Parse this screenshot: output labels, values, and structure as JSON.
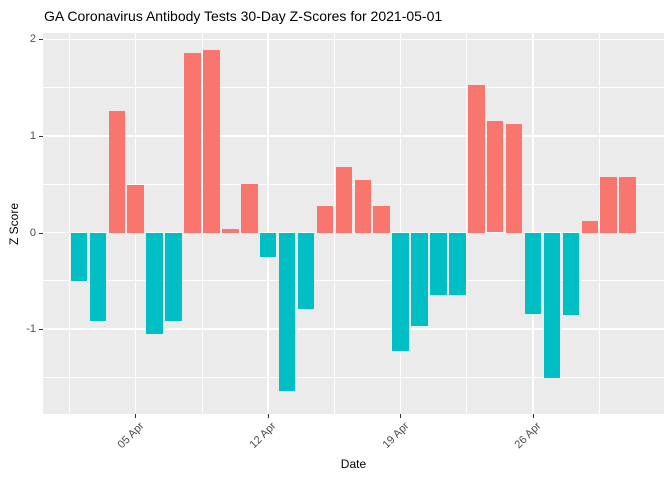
{
  "title": "GA Coronavirus Antibody Tests 30-Day Z-Scores for 2021-05-01",
  "chart_data": {
    "type": "bar",
    "title": "GA Coronavirus Antibody Tests 30-Day Z-Scores for 2021-05-01",
    "xlabel": "Date",
    "ylabel": "Z Score",
    "legend_position": "none",
    "grid": true,
    "panel_bg": "#EBEBEB",
    "grid_color": "#FFFFFF",
    "axis_text_color": "#4D4D4D",
    "tick_color": "#333333",
    "bar_colors": {
      "positive": "#F8766D",
      "negative": "#00BFC4"
    },
    "ylim": [
      -1.88,
      2.07
    ],
    "y_major_ticks": [
      2,
      1,
      0,
      -1
    ],
    "y_tick_labels": [
      "2",
      "1",
      "0",
      "-1"
    ],
    "y_minor_ticks": [
      1.5,
      0.5,
      -0.5,
      -1.5
    ],
    "x_major_ticks": [
      {
        "day": 3,
        "label": "05 Apr"
      },
      {
        "day": 10,
        "label": "12 Apr"
      },
      {
        "day": 17,
        "label": "19 Apr"
      },
      {
        "day": 24,
        "label": "26 Apr"
      }
    ],
    "x_minor_days": [
      -0.5,
      6.5,
      13.5,
      20.5,
      27.5
    ],
    "dates": [
      "2021-04-02",
      "2021-04-03",
      "2021-04-04",
      "2021-04-05",
      "2021-04-06",
      "2021-04-07",
      "2021-04-08",
      "2021-04-09",
      "2021-04-10",
      "2021-04-11",
      "2021-04-12",
      "2021-04-13",
      "2021-04-14",
      "2021-04-15",
      "2021-04-16",
      "2021-04-17",
      "2021-04-18",
      "2021-04-19",
      "2021-04-20",
      "2021-04-21",
      "2021-04-22",
      "2021-04-23",
      "2021-04-24",
      "2021-04-25",
      "2021-04-26",
      "2021-04-27",
      "2021-04-28",
      "2021-04-29",
      "2021-04-30",
      "2021-05-01"
    ],
    "values": [
      -0.5,
      -0.92,
      1.26,
      0.49,
      -1.05,
      -0.92,
      1.86,
      1.89,
      0.04,
      0.5,
      -0.25,
      -1.64,
      -0.79,
      0.27,
      0.68,
      0.54,
      0.27,
      -1.23,
      -0.97,
      -0.65,
      -0.65,
      1.53,
      1.15,
      1.12,
      -0.84,
      -1.51,
      -0.85,
      0.12,
      0.58,
      0.57
    ]
  }
}
